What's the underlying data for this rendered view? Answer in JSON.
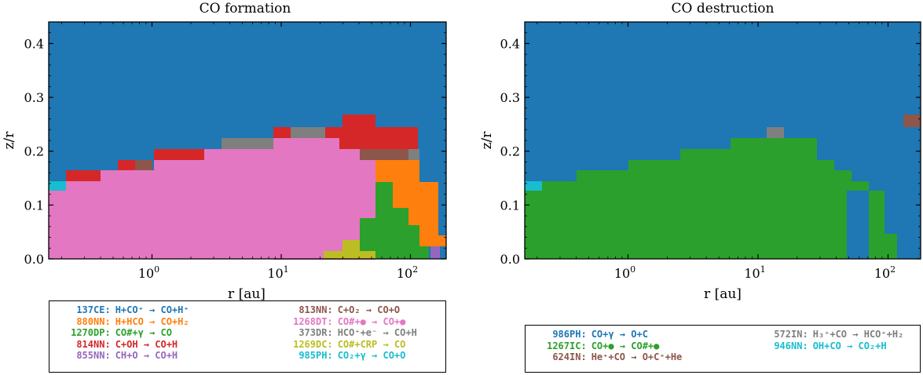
{
  "colors": {
    "blue": "#1f77b4",
    "orange": "#ff7f0e",
    "green": "#2ca02c",
    "red": "#d62728",
    "purple": "#9467bd",
    "brown": "#8c564b",
    "pink": "#e377c2",
    "gray": "#7f7f7f",
    "olive": "#bcbd22",
    "cyan": "#17becf"
  },
  "chart_data": [
    {
      "type": "heatmap",
      "title": "CO formation",
      "xlabel": "r [au]",
      "ylabel": "z/r",
      "xscale": "log",
      "xlim": [
        0.15,
        180
      ],
      "ylim": [
        0,
        0.44
      ],
      "xticks": [
        {
          "base": "10",
          "exp": "0",
          "value": 1
        },
        {
          "base": "10",
          "exp": "1",
          "value": 10
        },
        {
          "base": "10",
          "exp": "2",
          "value": 100
        }
      ],
      "yticks": [
        "0.0",
        "0.1",
        "0.2",
        "0.3",
        "0.4"
      ],
      "legend": {
        "placement": "below",
        "columns": [
          [
            {
              "count": "137",
              "type": "CE:",
              "reaction": "H+CO⁺ → CO+H⁺",
              "color": "#1f77b4"
            },
            {
              "count": "880",
              "type": "NN:",
              "reaction": "H+HCO → CO+H₂",
              "color": "#ff7f0e"
            },
            {
              "count": "1270",
              "type": "DP:",
              "reaction": "CO#+γ → CO",
              "color": "#2ca02c"
            },
            {
              "count": "814",
              "type": "NN:",
              "reaction": "C+OH → CO+H",
              "color": "#d62728"
            },
            {
              "count": "855",
              "type": "NN:",
              "reaction": "CH+O → CO+H",
              "color": "#9467bd"
            }
          ],
          [
            {
              "count": "813",
              "type": "NN:",
              "reaction": "C+O₂ → CO+O",
              "color": "#8c564b"
            },
            {
              "count": "1268",
              "type": "DT:",
              "reaction": "CO#+● → CO+●",
              "color": "#e377c2"
            },
            {
              "count": "373",
              "type": "DR:",
              "reaction": "HCO⁺+e⁻ → CO+H",
              "color": "#7f7f7f"
            },
            {
              "count": "1269",
              "type": "DC:",
              "reaction": "CO#+CRP → CO",
              "color": "#bcbd22"
            },
            {
              "count": "985",
              "type": "PH:",
              "reaction": "CO₂+γ → CO+O",
              "color": "#17becf"
            }
          ]
        ]
      }
    },
    {
      "type": "heatmap",
      "title": "CO destruction",
      "xlabel": "r [au]",
      "ylabel": "z/r",
      "xscale": "log",
      "xlim": [
        0.15,
        180
      ],
      "ylim": [
        0,
        0.44
      ],
      "xticks": [
        {
          "base": "10",
          "exp": "0",
          "value": 1
        },
        {
          "base": "10",
          "exp": "1",
          "value": 10
        },
        {
          "base": "10",
          "exp": "2",
          "value": 100
        }
      ],
      "yticks": [
        "0.0",
        "0.1",
        "0.2",
        "0.3",
        "0.4"
      ],
      "legend": {
        "placement": "below",
        "columns": [
          [
            {
              "count": "986",
              "type": "PH:",
              "reaction": "CO+γ → O+C",
              "color": "#1f77b4"
            },
            {
              "count": "1267",
              "type": "IC:",
              "reaction": "CO+● → CO#+●",
              "color": "#2ca02c"
            },
            {
              "count": "624",
              "type": "IN:",
              "reaction": "He⁺+CO → O+C⁺+He",
              "color": "#8c564b"
            }
          ],
          [
            {
              "count": "572",
              "type": "IN:",
              "reaction": "H₃⁺+CO → HCO⁺+H₂",
              "color": "#7f7f7f"
            },
            {
              "count": "946",
              "type": "NN:",
              "reaction": "OH+CO → CO₂+H",
              "color": "#17becf"
            }
          ]
        ]
      }
    }
  ]
}
